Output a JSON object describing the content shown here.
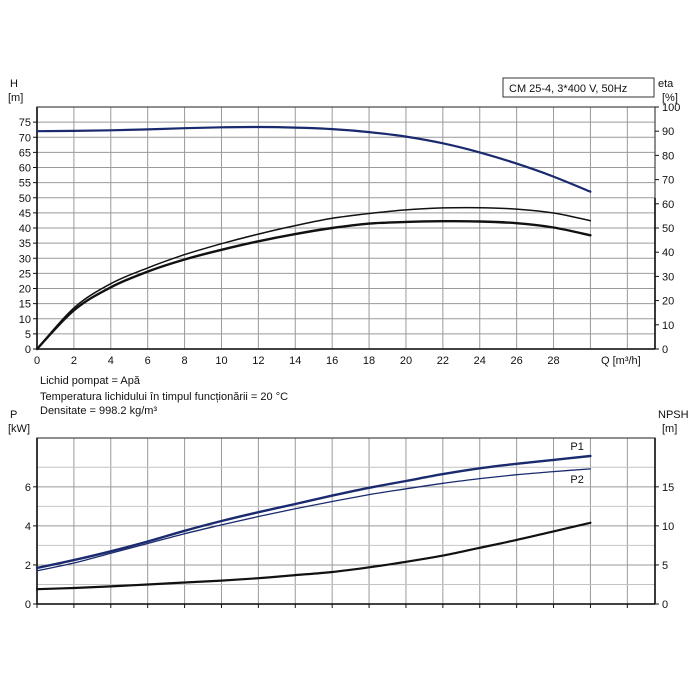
{
  "chart_data": [
    {
      "type": "line",
      "title": "CM 25-4, 3*400 V, 50Hz",
      "xlabel": "Q [m³/h]",
      "ylabel_left": [
        "H",
        "[m]"
      ],
      "ylabel_right": [
        "eta",
        "[%]"
      ],
      "x_ticks": [
        "0",
        "2",
        "4",
        "6",
        "8",
        "10",
        "12",
        "14",
        "16",
        "18",
        "20",
        "22",
        "24",
        "26",
        "28"
      ],
      "y_ticks_left": [
        "0",
        "5",
        "10",
        "15",
        "20",
        "25",
        "30",
        "35",
        "40",
        "45",
        "50",
        "55",
        "60",
        "65",
        "70",
        "75"
      ],
      "y_ticks_right": [
        "0",
        "10",
        "20",
        "30",
        "40",
        "50",
        "60",
        "70",
        "80",
        "90",
        "100"
      ],
      "xlim": [
        0,
        33.5
      ],
      "ylim_left": [
        0,
        80
      ],
      "ylim_right": [
        0,
        100
      ],
      "grid": true,
      "series": [
        {
          "axis": "left",
          "color": "#1a2a6e",
          "width": 2.2,
          "x": [
            0,
            2,
            4,
            6,
            8,
            10,
            12,
            14,
            16,
            18,
            20,
            22,
            24,
            26,
            28,
            30
          ],
          "y": [
            72,
            72.1,
            72.3,
            72.6,
            73,
            73.3,
            73.4,
            73.2,
            72.7,
            71.7,
            70.2,
            68,
            65,
            61.3,
            57,
            52
          ]
        },
        {
          "axis": "right",
          "color": "#111111",
          "width": 1.5,
          "x": [
            0,
            2,
            4,
            6,
            8,
            10,
            12,
            14,
            16,
            18,
            20,
            22,
            24,
            26,
            28,
            30
          ],
          "y": [
            0,
            17,
            27,
            33.5,
            39,
            43.5,
            47.5,
            51,
            54,
            56,
            57.5,
            58.3,
            58.4,
            57.8,
            56.2,
            53
          ]
        },
        {
          "axis": "right",
          "color": "#111111",
          "width": 2.4,
          "x": [
            0,
            2,
            4,
            6,
            8,
            10,
            12,
            14,
            16,
            18,
            20,
            22,
            24,
            26,
            28,
            30
          ],
          "y": [
            0,
            16,
            25.5,
            32,
            37,
            41,
            44.5,
            47.5,
            50,
            51.8,
            52.5,
            52.8,
            52.7,
            52,
            50.2,
            47
          ]
        }
      ]
    },
    {
      "type": "line",
      "xlabel": "",
      "ylabel_left": [
        "P",
        "[kW]"
      ],
      "ylabel_right": [
        "NPSH",
        "[m]"
      ],
      "y_ticks_left": [
        "0",
        "2",
        "4",
        "6"
      ],
      "y_ticks_right": [
        "0",
        "5",
        "10",
        "15"
      ],
      "xlim": [
        0,
        33.5
      ],
      "ylim_left": [
        0,
        8.5
      ],
      "ylim_right": [
        0,
        21.25
      ],
      "grid": true,
      "series": [
        {
          "name": "P1",
          "axis": "left",
          "color": "#1a2a6e",
          "width": 2.4,
          "x": [
            0,
            2,
            4,
            6,
            8,
            10,
            12,
            14,
            16,
            18,
            20,
            22,
            24,
            26,
            28,
            30
          ],
          "y": [
            1.85,
            2.25,
            2.7,
            3.2,
            3.75,
            4.25,
            4.7,
            5.12,
            5.55,
            5.95,
            6.3,
            6.65,
            6.95,
            7.18,
            7.38,
            7.58
          ]
        },
        {
          "name": "P2",
          "axis": "left",
          "color": "#1a2a6e",
          "width": 1.3,
          "x": [
            0,
            2,
            4,
            6,
            8,
            10,
            12,
            14,
            16,
            18,
            20,
            22,
            24,
            26,
            28,
            30
          ],
          "y": [
            1.7,
            2.1,
            2.6,
            3.1,
            3.6,
            4.05,
            4.48,
            4.88,
            5.25,
            5.6,
            5.9,
            6.18,
            6.42,
            6.62,
            6.78,
            6.92
          ]
        },
        {
          "axis": "right",
          "color": "#111111",
          "width": 2.2,
          "x": [
            0,
            2,
            4,
            6,
            8,
            10,
            12,
            14,
            16,
            18,
            20,
            22,
            24,
            26,
            28,
            30
          ],
          "y": [
            1.9,
            2.05,
            2.25,
            2.5,
            2.75,
            3.0,
            3.3,
            3.7,
            4.1,
            4.7,
            5.4,
            6.2,
            7.2,
            8.2,
            9.3,
            10.4
          ]
        }
      ]
    }
  ],
  "fluid_info": {
    "line1": "Lichid pompat = Apă",
    "line2": "Temperatura lichidului în timpul funcționării = 20 °C",
    "line3": "Densitate = 998.2 kg/m³"
  }
}
